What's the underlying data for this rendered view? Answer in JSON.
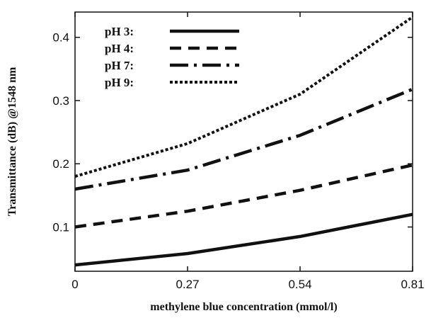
{
  "chart_data": {
    "type": "line",
    "xlabel": "methylene blue concentration (mmol/l)",
    "ylabel": "Transmittance (dB) @1548 nm",
    "xlim": [
      0,
      0.81
    ],
    "ylim": [
      0.03,
      0.44
    ],
    "xticks": [
      0,
      0.27,
      0.54,
      0.81
    ],
    "xtick_labels": [
      "0",
      "0.27",
      "0.54",
      "0.81"
    ],
    "yticks": [
      0.1,
      0.2,
      0.3,
      0.4
    ],
    "ytick_labels": [
      "0.1",
      "0.2",
      "0.3",
      "0.4"
    ],
    "grid": false,
    "legend_position": "top-left",
    "series": [
      {
        "name": "pH 3:",
        "style": "solid",
        "x": [
          0,
          0.27,
          0.54,
          0.81
        ],
        "values": [
          0.04,
          0.058,
          0.085,
          0.12
        ]
      },
      {
        "name": "pH 4:",
        "style": "dashed",
        "x": [
          0,
          0.27,
          0.54,
          0.81
        ],
        "values": [
          0.1,
          0.125,
          0.158,
          0.198
        ]
      },
      {
        "name": "pH 7:",
        "style": "dashdot",
        "x": [
          0,
          0.27,
          0.54,
          0.81
        ],
        "values": [
          0.16,
          0.19,
          0.245,
          0.318
        ]
      },
      {
        "name": "pH 9:",
        "style": "dotted",
        "x": [
          0,
          0.27,
          0.54,
          0.81
        ],
        "values": [
          0.18,
          0.232,
          0.31,
          0.432
        ]
      }
    ]
  }
}
